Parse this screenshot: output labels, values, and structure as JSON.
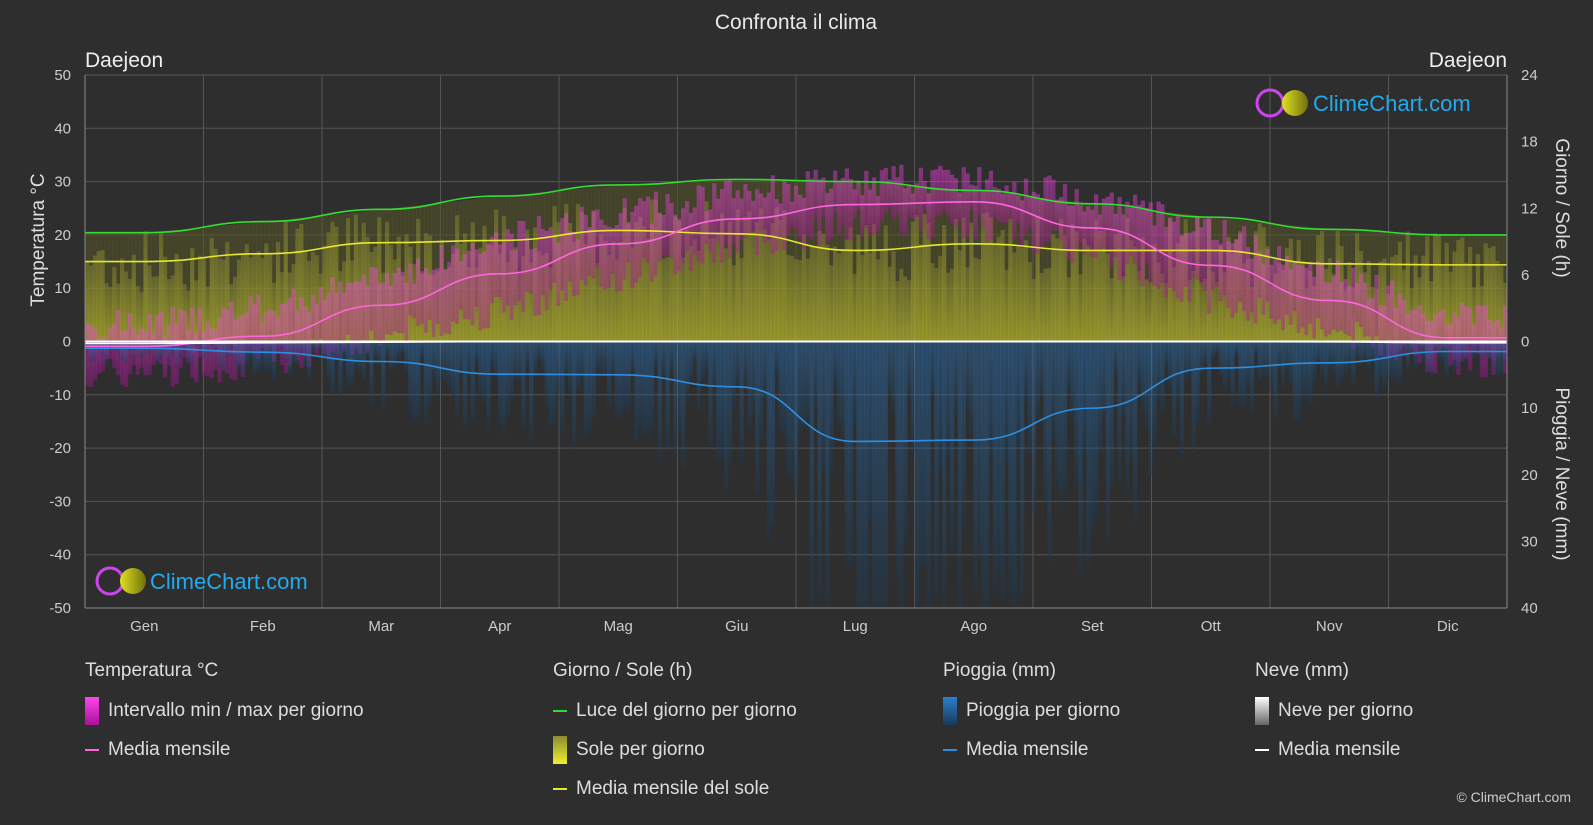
{
  "chart_data": {
    "type": "line",
    "title": "Confronta il clima",
    "location_left": "Daejeon",
    "location_right": "Daejeon",
    "watermark": "ClimeChart.com",
    "categories": [
      "Gen",
      "Feb",
      "Mar",
      "Apr",
      "Mag",
      "Giu",
      "Lug",
      "Ago",
      "Set",
      "Ott",
      "Nov",
      "Dic"
    ],
    "y_left": {
      "label": "Temperatura °C",
      "range": [
        -50,
        50
      ],
      "ticks": [
        "50",
        "40",
        "30",
        "20",
        "10",
        "0",
        "-10",
        "-20",
        "-30",
        "-40",
        "-50"
      ]
    },
    "y_right_top": {
      "label": "Giorno / Sole (h)",
      "range": [
        0,
        24
      ],
      "ticks": [
        "24",
        "18",
        "12",
        "6",
        "0"
      ]
    },
    "y_right_bottom": {
      "label": "Pioggia / Neve (mm)",
      "range": [
        0,
        40
      ],
      "ticks": [
        "0",
        "10",
        "20",
        "30",
        "40"
      ]
    },
    "series": [
      {
        "name": "Luce del giorno per giorno",
        "unit": "h",
        "color": "#33dd33",
        "values": [
          9.8,
          10.8,
          11.9,
          13.1,
          14.1,
          14.6,
          14.4,
          13.6,
          12.4,
          11.2,
          10.1,
          9.6
        ]
      },
      {
        "name": "Media mensile del sole",
        "unit": "h",
        "color": "#e8e830",
        "values": [
          7.2,
          7.9,
          8.9,
          9.1,
          10.0,
          9.7,
          8.2,
          8.8,
          8.2,
          8.2,
          7.0,
          6.9
        ]
      },
      {
        "name": "Media mensile (temperatura)",
        "unit": "°C",
        "color": "#ff66dd",
        "values": [
          -0.9,
          1.0,
          6.8,
          12.7,
          18.3,
          23.0,
          25.7,
          26.2,
          21.3,
          14.3,
          7.7,
          0.7
        ]
      },
      {
        "name": "Media mensile (pioggia)",
        "unit": "mm",
        "color": "#2e8fe0",
        "values": [
          1.0,
          1.6,
          3.0,
          4.9,
          5.0,
          6.8,
          15.0,
          14.8,
          10.0,
          4.0,
          3.2,
          1.5
        ]
      },
      {
        "name": "Media mensile (neve)",
        "unit": "mm",
        "color": "#ffffff",
        "values": [
          0.3,
          0.2,
          0.1,
          0,
          0,
          0,
          0,
          0,
          0,
          0,
          0.05,
          0.2
        ]
      }
    ],
    "temp_range_band": {
      "max": [
        3,
        6,
        12,
        19,
        24,
        28,
        30,
        31,
        27,
        21,
        13,
        5
      ],
      "min": [
        -6,
        -4,
        1,
        6,
        12,
        18,
        22,
        22,
        16,
        8,
        2,
        -4
      ]
    },
    "grid": true
  },
  "legend": {
    "temperature": {
      "title": "Temperatura °C",
      "items": [
        "Intervallo min / max per giorno",
        "Media mensile"
      ]
    },
    "daysun": {
      "title": "Giorno / Sole (h)",
      "items": [
        "Luce del giorno per giorno",
        "Sole per giorno",
        "Media mensile del sole"
      ]
    },
    "rain": {
      "title": "Pioggia (mm)",
      "items": [
        "Pioggia per giorno",
        "Media mensile"
      ]
    },
    "snow": {
      "title": "Neve (mm)",
      "items": [
        "Neve per giorno",
        "Media mensile"
      ]
    }
  },
  "copyright": "© ClimeChart.com"
}
